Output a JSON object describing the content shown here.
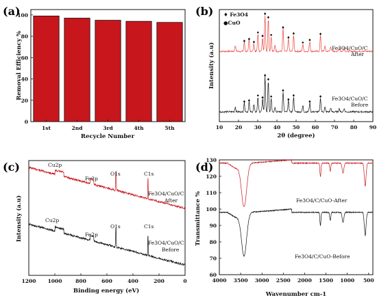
{
  "chart_data": [
    {
      "panel": "(a)",
      "type": "bar",
      "ylabel": "Removal Efficiency %",
      "xlabel": "Recycle Number",
      "categories": [
        "1st",
        "2nd",
        "3rd",
        "4th",
        "5th"
      ],
      "values": [
        99,
        97,
        95,
        94,
        93
      ],
      "ylim": [
        0,
        105
      ],
      "yticks": [
        0,
        20,
        40,
        60,
        80,
        100
      ],
      "bar_color": "#c8161d"
    },
    {
      "panel": "(b)",
      "type": "line",
      "xlabel": "2θ (degree)",
      "ylabel": "Intensity (a.u)",
      "xlim": [
        10,
        90
      ],
      "xticks": [
        10,
        20,
        30,
        40,
        50,
        60,
        70,
        80,
        90
      ],
      "legend": [
        {
          "marker": "♦",
          "label": "Fe3O4"
        },
        {
          "marker": "●",
          "label": "CuO"
        }
      ],
      "series": [
        {
          "name": "Fe3O4/CuO/C After",
          "color": "#e8453c",
          "baseline": 0.62,
          "peaks": [
            [
              18.3,
              0.12
            ],
            [
              23.0,
              0.18
            ],
            [
              25.5,
              0.22
            ],
            [
              28.0,
              0.16
            ],
            [
              30.1,
              0.35
            ],
            [
              32.5,
              0.28
            ],
            [
              33.8,
              0.72
            ],
            [
              35.5,
              0.65
            ],
            [
              37.0,
              0.3
            ],
            [
              39.0,
              0.12
            ],
            [
              43.2,
              0.45
            ],
            [
              46.0,
              0.25
            ],
            [
              48.7,
              0.33
            ],
            [
              53.5,
              0.15
            ],
            [
              57.1,
              0.2
            ],
            [
              62.7,
              0.32
            ],
            [
              65.0,
              0.1
            ],
            [
              68.0,
              0.1
            ],
            [
              72.5,
              0.08
            ],
            [
              75.0,
              0.08
            ]
          ]
        },
        {
          "name": "Fe3O4/CuO/C Before",
          "color": "#111111",
          "baseline": 0.08,
          "peaks": [
            [
              18.3,
              0.1
            ],
            [
              23.0,
              0.18
            ],
            [
              25.5,
              0.2
            ],
            [
              28.0,
              0.14
            ],
            [
              30.1,
              0.3
            ],
            [
              32.5,
              0.26
            ],
            [
              33.8,
              0.7
            ],
            [
              35.5,
              0.62
            ],
            [
              37.0,
              0.28
            ],
            [
              39.0,
              0.1
            ],
            [
              43.2,
              0.4
            ],
            [
              46.0,
              0.22
            ],
            [
              48.7,
              0.3
            ],
            [
              53.5,
              0.12
            ],
            [
              57.1,
              0.18
            ],
            [
              62.7,
              0.28
            ],
            [
              65.0,
              0.09
            ],
            [
              68.0,
              0.08
            ],
            [
              72.5,
              0.07
            ],
            [
              75.0,
              0.07
            ]
          ]
        }
      ]
    },
    {
      "panel": "(c)",
      "type": "line",
      "xlabel": "Binding energy (eV)",
      "ylabel": "Intensity (a.u)",
      "xlim": [
        1200,
        0
      ],
      "xticks": [
        1200,
        1000,
        800,
        600,
        400,
        200,
        0
      ],
      "annotations": [
        "Cu2p",
        "Fe2p",
        "O1s",
        "C1s"
      ],
      "series": [
        {
          "name": "Fe3O4/CuO/C After",
          "color": "#c8161d"
        },
        {
          "name": "Fe3O4/CuO/C Before",
          "color": "#111111"
        }
      ]
    },
    {
      "panel": "(d)",
      "type": "line",
      "xlabel": "Wavenumber cm-1",
      "ylabel": "Transmittance %",
      "xlim": [
        4000,
        400
      ],
      "ylim": [
        60,
        130
      ],
      "xticks": [
        4000,
        3500,
        3000,
        2500,
        2000,
        1500,
        1000,
        500
      ],
      "yticks": [
        60,
        70,
        80,
        90,
        100,
        110,
        120,
        130
      ],
      "series": [
        {
          "name": "Fe3O4/C/CuO-After",
          "color": "#c8161d"
        },
        {
          "name": "Fe3O4/C/CuO-Before",
          "color": "#111111"
        }
      ]
    }
  ],
  "labels": {
    "a": "(a)",
    "b": "(b)",
    "c": "(c)",
    "d": "(d)",
    "fe3o4": "♦ Fe3O4",
    "cuo": "●CuO",
    "b_after_1": "Fe3O4/CuO/C",
    "b_after_2": "After",
    "b_before_1": "Fe3O4/CuO/C",
    "b_before_2": "Before",
    "c_after_1": "Fe3O4/CuO/C",
    "c_after_2": "After",
    "c_before_1": "Fe3O4/CuO/C",
    "c_before_2": "Before",
    "d_after": "Fe3O4/C/CuO-After",
    "d_before": "Fe3O4/C/CuO-Before",
    "cu2p": "Cu2p",
    "fe2p": "Fe2p",
    "o1s": "O1s",
    "c1s": "C1s"
  }
}
